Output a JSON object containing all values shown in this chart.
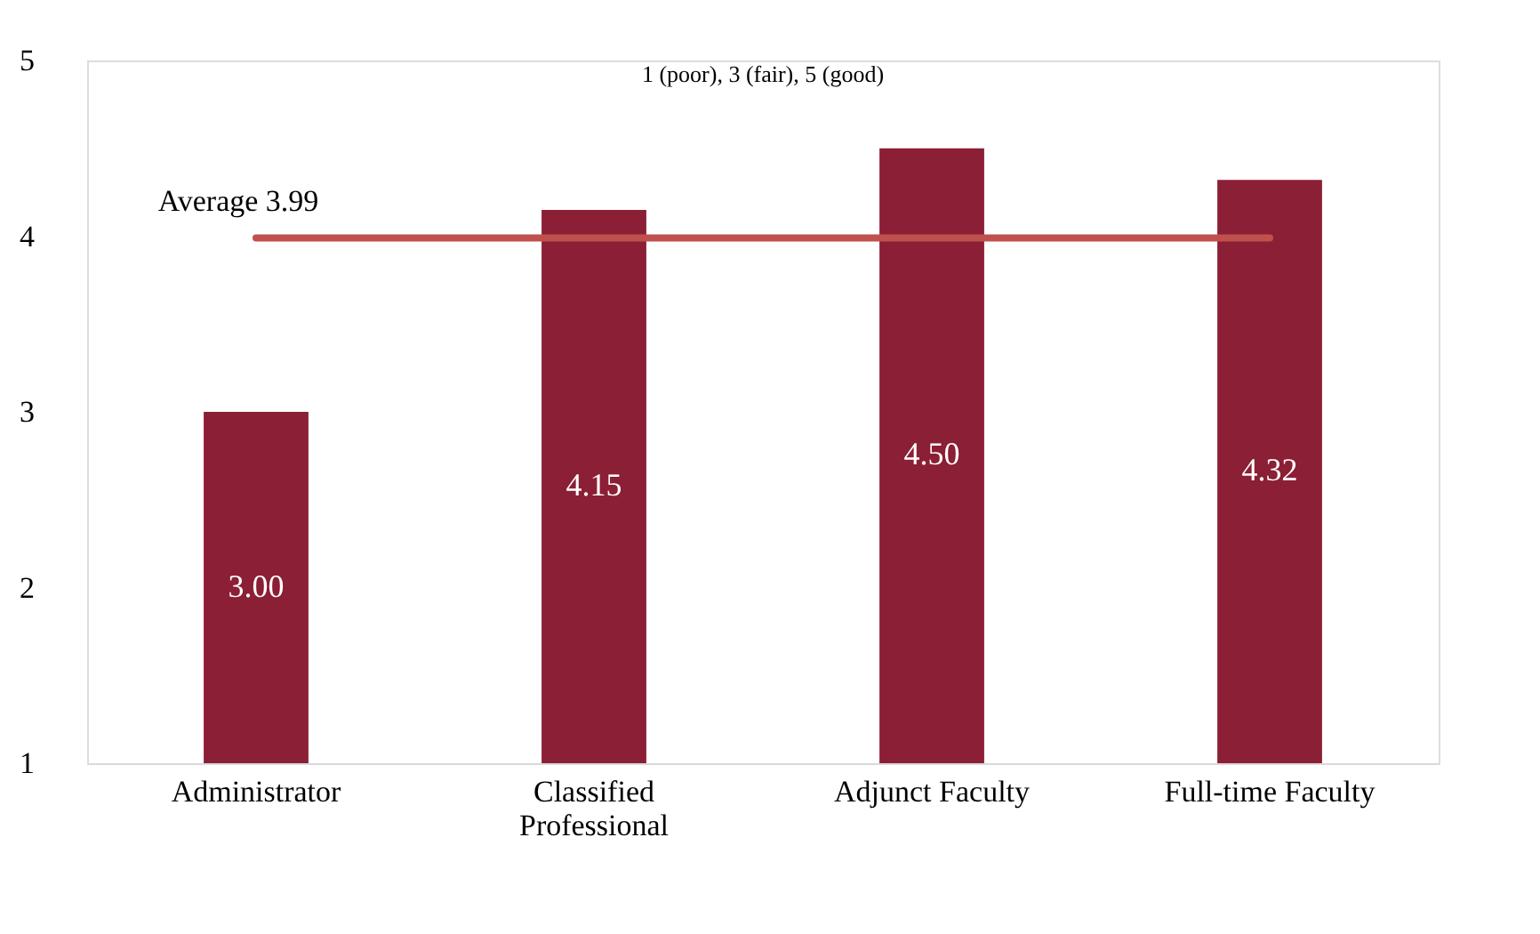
{
  "chart_data": {
    "type": "bar",
    "categories": [
      "Administrator",
      "Classified Professional",
      "Adjunct Faculty",
      "Full-time Faculty"
    ],
    "values": [
      3.0,
      4.15,
      4.5,
      4.32
    ],
    "value_labels": [
      "3.00",
      "4.15",
      "4.50",
      "4.32"
    ],
    "color": "#8b1f35",
    "ylim": [
      1,
      5
    ],
    "yticks": [
      1,
      2,
      3,
      4,
      5
    ],
    "grid": false,
    "ref_lines": [
      {
        "axis": "y",
        "value": 3.99,
        "label": "Average  3.99",
        "color": "#c0504d"
      }
    ],
    "annotations": [
      "1 (poor), 3 (fair), 5 (good)"
    ]
  }
}
